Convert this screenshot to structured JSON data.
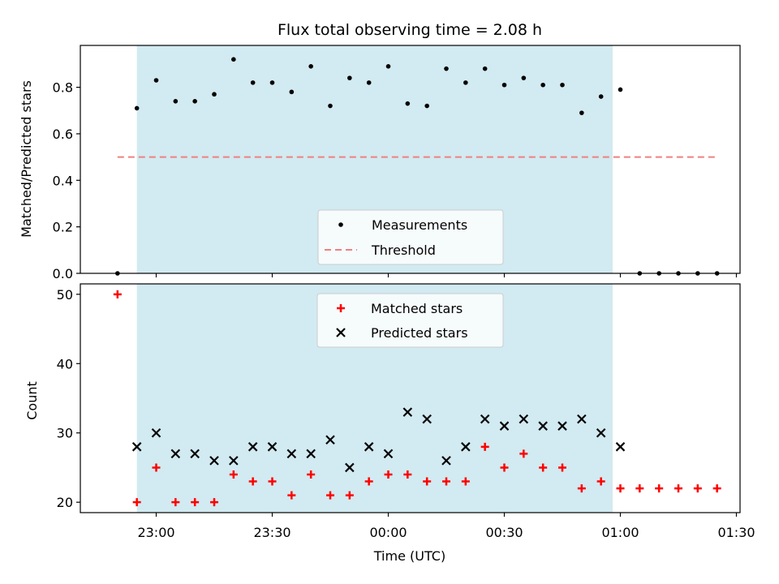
{
  "chart_data": [
    {
      "type": "scatter",
      "title": "Flux total observing time = 2.08 h",
      "xlabel": "",
      "ylabel": "Matched/Predicted stars",
      "ylim": [
        0,
        0.98
      ],
      "yticks": [
        "0.0",
        "0.2",
        "0.4",
        "0.6",
        "0.8"
      ],
      "yticks_values": [
        0,
        0.2,
        0.4,
        0.6,
        0.8
      ],
      "x_ticks_values": [
        "23:00",
        "23:30",
        "00:00",
        "00:30",
        "01:00",
        "01:30"
      ],
      "observing_window": {
        "start": "22:55",
        "end": "00:58",
        "color": "#add8e6"
      },
      "threshold": {
        "value": 0.5,
        "x_start": "22:50",
        "x_end": "01:25",
        "color": "#f08080"
      },
      "legend": {
        "placement": "lower center",
        "entries": [
          "Measurements",
          "Threshold"
        ]
      },
      "series": [
        {
          "name": "Measurements",
          "color": "#000000",
          "x": [
            "22:50",
            "22:55",
            "23:00",
            "23:05",
            "23:10",
            "23:15",
            "23:20",
            "23:25",
            "23:30",
            "23:35",
            "23:40",
            "23:45",
            "23:50",
            "23:55",
            "00:00",
            "00:05",
            "00:10",
            "00:15",
            "00:20",
            "00:25",
            "00:30",
            "00:35",
            "00:40",
            "00:45",
            "00:50",
            "00:55",
            "01:00",
            "01:05",
            "01:10",
            "01:15",
            "01:20",
            "01:25"
          ],
          "y": [
            0.0,
            0.71,
            0.83,
            0.74,
            0.74,
            0.77,
            0.92,
            0.82,
            0.82,
            0.78,
            0.89,
            0.72,
            0.84,
            0.82,
            0.89,
            0.73,
            0.72,
            0.88,
            0.82,
            0.88,
            0.81,
            0.84,
            0.81,
            0.81,
            0.69,
            0.76,
            0.79,
            0.0,
            0.0,
            0.0,
            0.0,
            0.0
          ]
        }
      ]
    },
    {
      "type": "scatter",
      "title": "",
      "xlabel": "Time (UTC)",
      "ylabel": "Count",
      "ylim": [
        18.5,
        51.5
      ],
      "yticks": [
        "20",
        "30",
        "40",
        "50"
      ],
      "yticks_values": [
        20,
        30,
        40,
        50
      ],
      "xticks": [
        "23:00",
        "23:30",
        "00:00",
        "00:30",
        "01:00",
        "01:30"
      ],
      "observing_window": {
        "start": "22:55",
        "end": "00:58",
        "color": "#add8e6"
      },
      "legend": {
        "placement": "upper center",
        "entries": [
          "Matched stars",
          "Predicted stars"
        ]
      },
      "series": [
        {
          "name": "Matched stars",
          "marker": "+",
          "color": "#ff0000",
          "x": [
            "22:50",
            "22:55",
            "23:00",
            "23:05",
            "23:10",
            "23:15",
            "23:20",
            "23:25",
            "23:30",
            "23:35",
            "23:40",
            "23:45",
            "23:50",
            "23:55",
            "00:00",
            "00:05",
            "00:10",
            "00:15",
            "00:20",
            "00:25",
            "00:30",
            "00:35",
            "00:40",
            "00:45",
            "00:50",
            "00:55",
            "01:00",
            "01:05",
            "01:10",
            "01:15",
            "01:20",
            "01:25"
          ],
          "y": [
            50,
            20,
            25,
            20,
            20,
            20,
            24,
            23,
            23,
            21,
            24,
            21,
            21,
            23,
            24,
            24,
            23,
            23,
            23,
            28,
            25,
            27,
            25,
            25,
            22,
            23,
            22,
            22,
            22,
            22,
            22,
            22
          ]
        },
        {
          "name": "Predicted stars",
          "marker": "x",
          "color": "#000000",
          "x": [
            "22:55",
            "23:00",
            "23:05",
            "23:10",
            "23:15",
            "23:20",
            "23:25",
            "23:30",
            "23:35",
            "23:40",
            "23:45",
            "23:50",
            "23:55",
            "00:00",
            "00:05",
            "00:10",
            "00:15",
            "00:20",
            "00:25",
            "00:30",
            "00:35",
            "00:40",
            "00:45",
            "00:50",
            "00:55",
            "01:00"
          ],
          "y": [
            28,
            30,
            27,
            27,
            26,
            26,
            28,
            28,
            27,
            27,
            29,
            25,
            28,
            27,
            33,
            32,
            26,
            28,
            32,
            31,
            32,
            31,
            31,
            32,
            30,
            28
          ]
        }
      ]
    }
  ]
}
